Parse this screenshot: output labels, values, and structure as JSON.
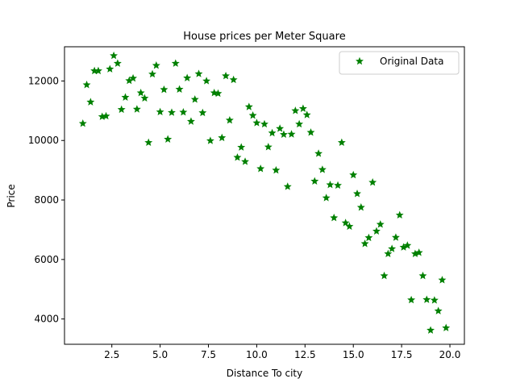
{
  "chart_data": {
    "type": "scatter",
    "title": "House prices per Meter Square",
    "xlabel": "Distance To city",
    "ylabel": "Price",
    "xlim": [
      0.05,
      20.75
    ],
    "ylim": [
      3150,
      13150
    ],
    "xticks": [
      2.5,
      5.0,
      7.5,
      10.0,
      12.5,
      15.0,
      17.5,
      20.0
    ],
    "xtick_labels": [
      "2.5",
      "5.0",
      "7.5",
      "10.0",
      "12.5",
      "15.0",
      "17.5",
      "20.0"
    ],
    "yticks": [
      4000,
      6000,
      8000,
      10000,
      12000
    ],
    "ytick_labels": [
      "4000",
      "6000",
      "8000",
      "10000",
      "12000"
    ],
    "grid": false,
    "legend_position": "top-right",
    "marker": "star",
    "series": [
      {
        "name": "Original Data",
        "color": "#008000",
        "points": [
          [
            1.0,
            10570
          ],
          [
            1.2,
            11870
          ],
          [
            1.4,
            11290
          ],
          [
            1.6,
            12340
          ],
          [
            1.8,
            12340
          ],
          [
            2.0,
            10800
          ],
          [
            2.2,
            10820
          ],
          [
            2.4,
            12400
          ],
          [
            2.6,
            12850
          ],
          [
            2.8,
            12590
          ],
          [
            3.0,
            11040
          ],
          [
            3.2,
            11450
          ],
          [
            3.4,
            12010
          ],
          [
            3.6,
            12090
          ],
          [
            3.8,
            11050
          ],
          [
            4.0,
            11600
          ],
          [
            4.2,
            11420
          ],
          [
            4.4,
            9930
          ],
          [
            4.6,
            12230
          ],
          [
            4.8,
            12520
          ],
          [
            5.0,
            10960
          ],
          [
            5.2,
            11710
          ],
          [
            5.4,
            10040
          ],
          [
            5.6,
            10940
          ],
          [
            5.8,
            12590
          ],
          [
            6.0,
            11720
          ],
          [
            6.2,
            10950
          ],
          [
            6.4,
            12100
          ],
          [
            6.6,
            10640
          ],
          [
            6.8,
            11380
          ],
          [
            7.0,
            12240
          ],
          [
            7.2,
            10930
          ],
          [
            7.4,
            12000
          ],
          [
            7.6,
            9990
          ],
          [
            7.8,
            11600
          ],
          [
            8.0,
            11580
          ],
          [
            8.2,
            10090
          ],
          [
            8.4,
            12170
          ],
          [
            8.6,
            10680
          ],
          [
            8.8,
            12040
          ],
          [
            9.0,
            9430
          ],
          [
            9.2,
            9770
          ],
          [
            9.4,
            9290
          ],
          [
            9.6,
            11130
          ],
          [
            9.8,
            10840
          ],
          [
            10.0,
            10590
          ],
          [
            10.2,
            9050
          ],
          [
            10.4,
            10550
          ],
          [
            10.6,
            9780
          ],
          [
            10.8,
            10250
          ],
          [
            11.0,
            9000
          ],
          [
            11.2,
            10400
          ],
          [
            11.4,
            10200
          ],
          [
            11.6,
            8450
          ],
          [
            11.8,
            10210
          ],
          [
            12.0,
            11000
          ],
          [
            12.2,
            10550
          ],
          [
            12.4,
            11070
          ],
          [
            12.6,
            10860
          ],
          [
            12.8,
            10270
          ],
          [
            13.0,
            8630
          ],
          [
            13.2,
            9560
          ],
          [
            13.4,
            9020
          ],
          [
            13.6,
            8070
          ],
          [
            13.8,
            8510
          ],
          [
            14.0,
            7400
          ],
          [
            14.2,
            8490
          ],
          [
            14.4,
            9930
          ],
          [
            14.6,
            7230
          ],
          [
            14.8,
            7110
          ],
          [
            15.0,
            8840
          ],
          [
            15.2,
            8210
          ],
          [
            15.4,
            7750
          ],
          [
            15.6,
            6530
          ],
          [
            15.8,
            6730
          ],
          [
            16.0,
            8590
          ],
          [
            16.2,
            6950
          ],
          [
            16.4,
            7180
          ],
          [
            16.6,
            5450
          ],
          [
            16.8,
            6190
          ],
          [
            17.0,
            6360
          ],
          [
            17.2,
            6740
          ],
          [
            17.4,
            7490
          ],
          [
            17.6,
            6410
          ],
          [
            17.8,
            6470
          ],
          [
            18.0,
            4640
          ],
          [
            18.2,
            6190
          ],
          [
            18.4,
            6230
          ],
          [
            18.6,
            5450
          ],
          [
            18.8,
            4650
          ],
          [
            19.0,
            3620
          ],
          [
            19.2,
            4630
          ],
          [
            19.4,
            4270
          ],
          [
            19.6,
            5310
          ],
          [
            19.8,
            3700
          ]
        ]
      }
    ]
  }
}
